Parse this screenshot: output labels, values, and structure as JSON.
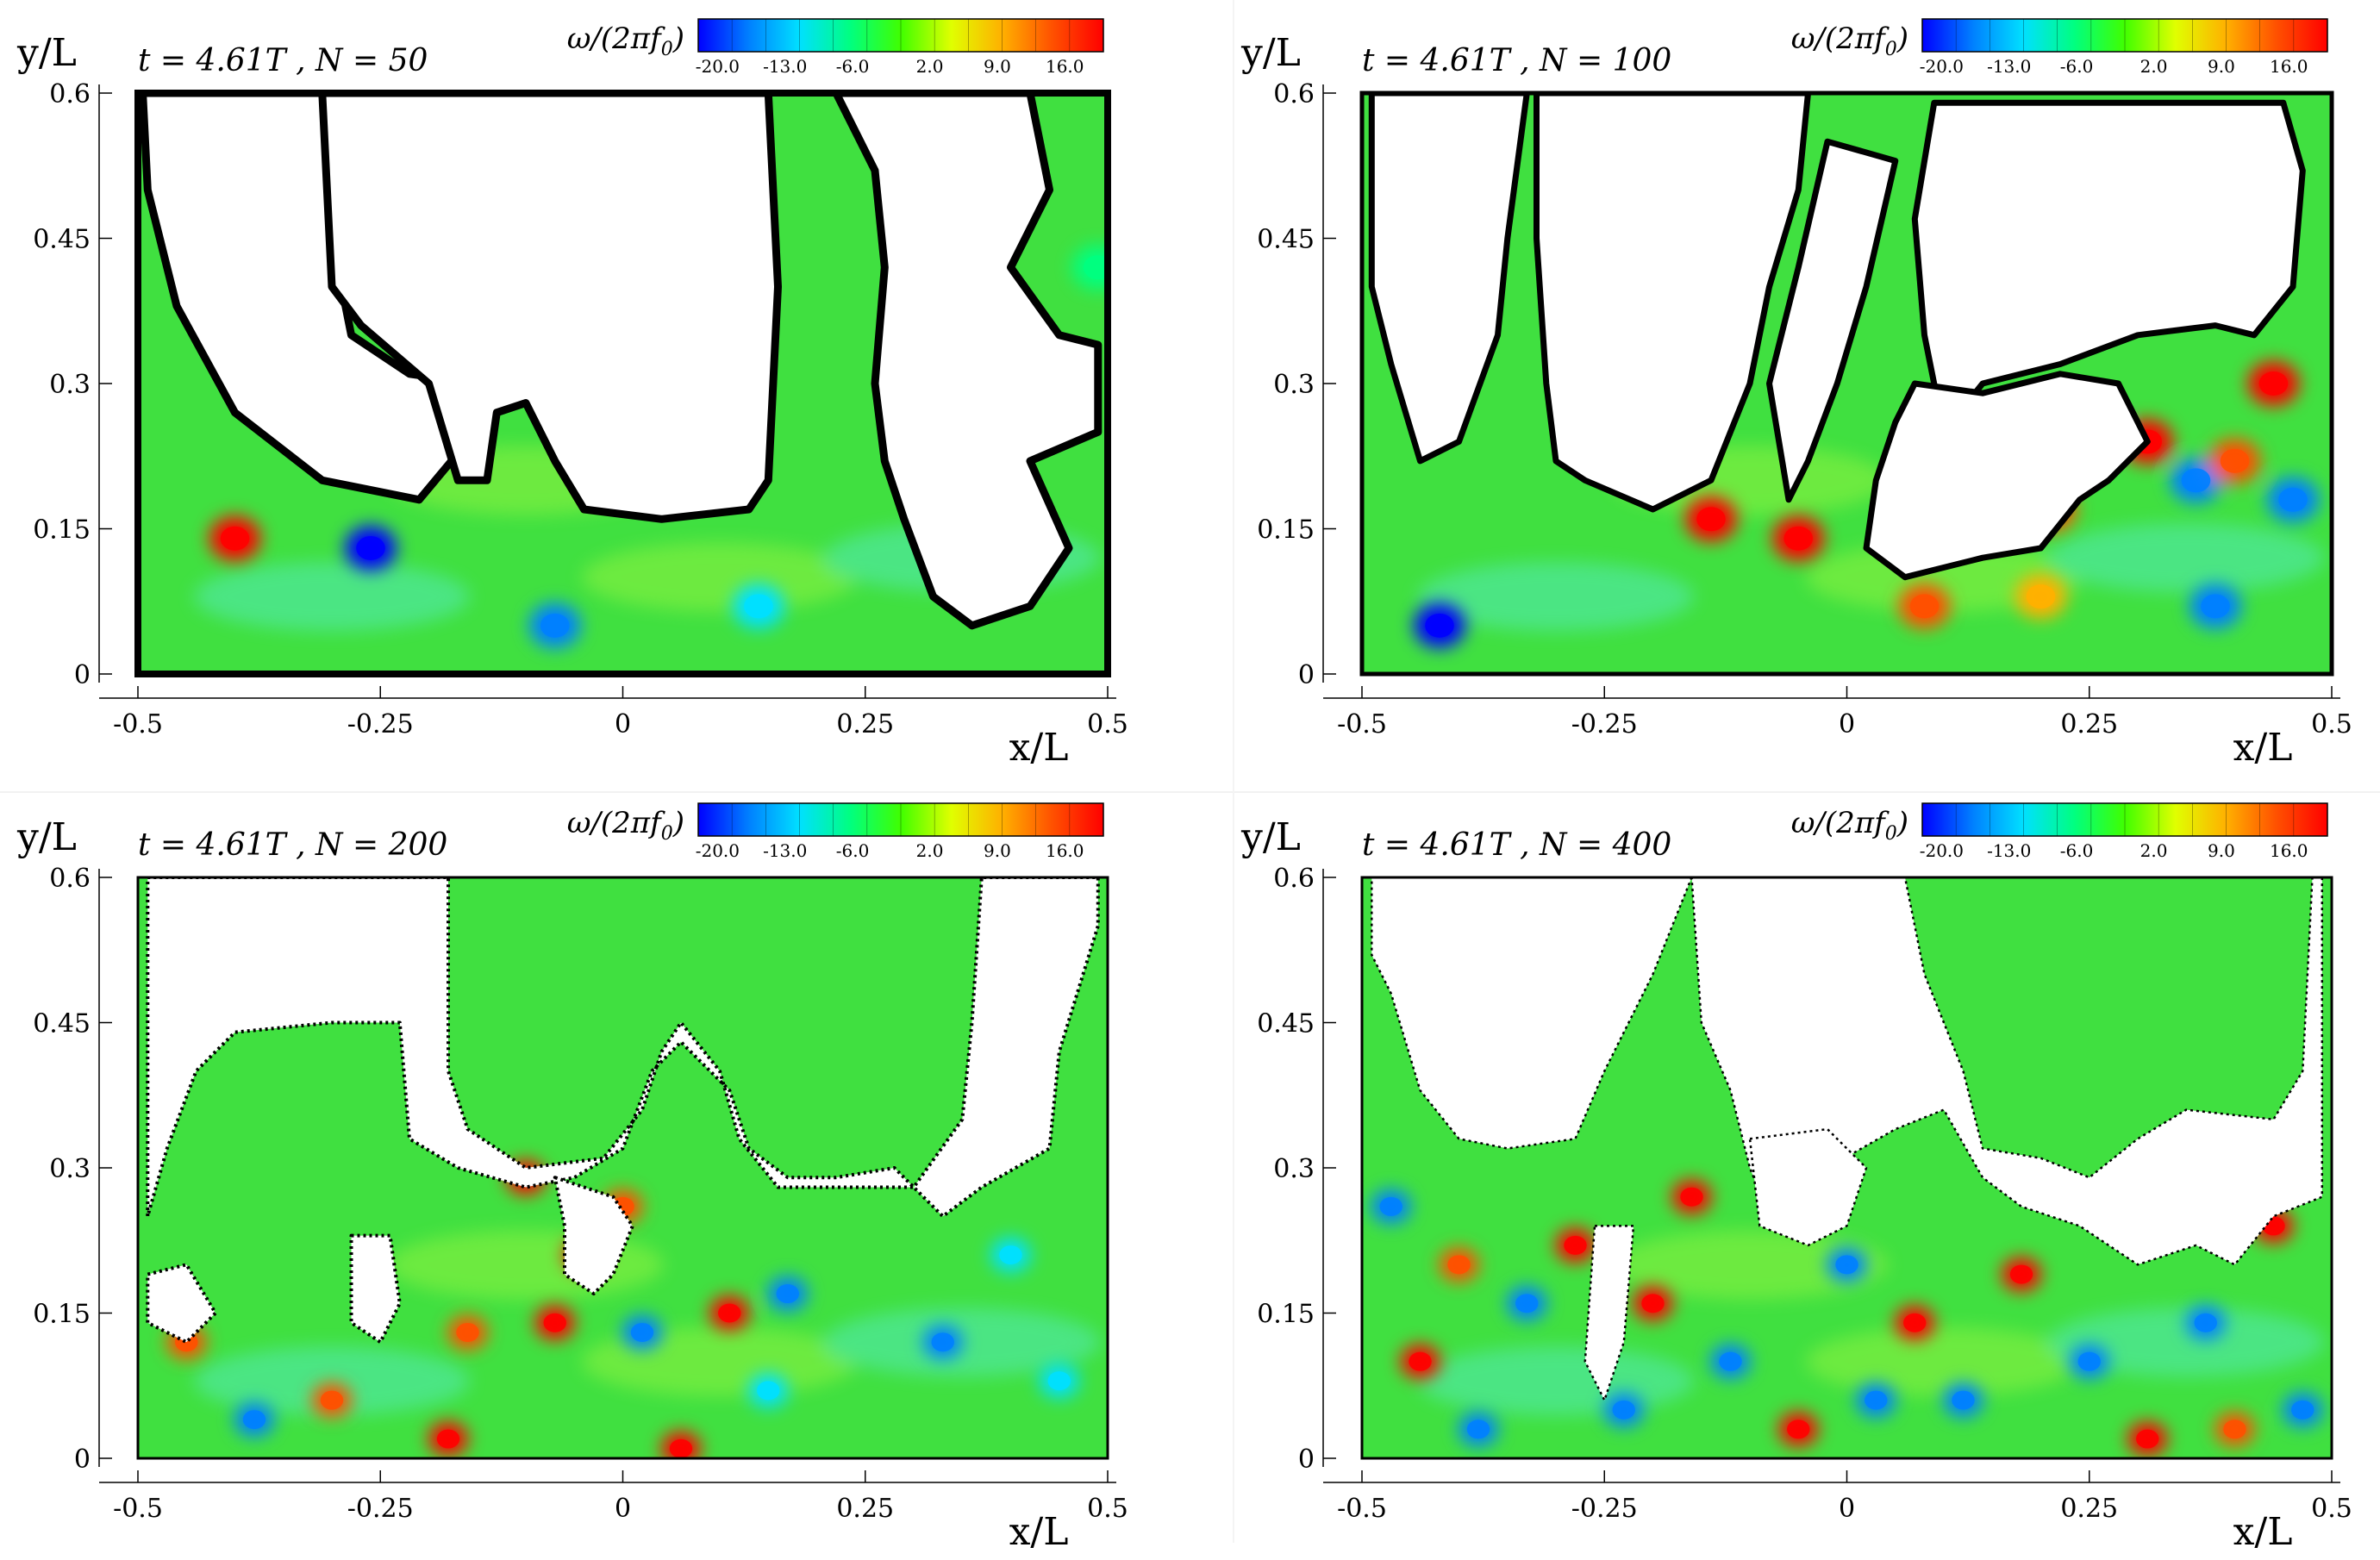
{
  "colorbar": {
    "label": "ω/(2πf",
    "label_sub": "0",
    "label_close": ")",
    "ticks": [
      "-20.0",
      "-13.0",
      "-6.0",
      "2.0",
      "9.0",
      "16.0"
    ],
    "range": [
      -22,
      20
    ],
    "colors": [
      "#0000ff",
      "#0080ff",
      "#00e0ff",
      "#00ff80",
      "#40ff00",
      "#e0ff00",
      "#ffb000",
      "#ff5000",
      "#ff0000"
    ]
  },
  "axes": {
    "xlabel": "x/L",
    "ylabel": "y/L",
    "xticks": [
      "-0.5",
      "-0.25",
      "0",
      "0.25",
      "0.5"
    ],
    "xtick_values": [
      -0.5,
      -0.25,
      0,
      0.25,
      0.5
    ],
    "yticks": [
      "0",
      "0.15",
      "0.3",
      "0.45",
      "0.6"
    ],
    "ytick_values": [
      0,
      0.15,
      0.3,
      0.45,
      0.6
    ],
    "xlim": [
      -0.5,
      0.5
    ],
    "ylim": [
      0,
      0.6
    ]
  },
  "chart_data": [
    {
      "type": "heatmap",
      "title_t": "t = 4.61T",
      "title_n": "N = 50",
      "xlabel": "x/L",
      "ylabel": "y/L",
      "xlim": [
        -0.5,
        0.5
      ],
      "ylim": [
        0,
        0.6
      ],
      "colorbar_label": "ω/(2πf0)",
      "vortices": [
        {
          "x": -0.4,
          "y": 0.14,
          "v": 18
        },
        {
          "x": -0.26,
          "y": 0.13,
          "v": -20
        },
        {
          "x": -0.07,
          "y": 0.05,
          "v": -15
        },
        {
          "x": 0.14,
          "y": 0.07,
          "v": -10
        },
        {
          "x": 0.49,
          "y": 0.42,
          "v": -8
        }
      ],
      "void_regions": [
        [
          [
            -0.495,
            0.6
          ],
          [
            -0.3,
            0.6
          ],
          [
            -0.29,
            0.4
          ],
          [
            -0.28,
            0.35
          ],
          [
            -0.22,
            0.31
          ],
          [
            -0.15,
            0.3
          ],
          [
            -0.16,
            0.24
          ],
          [
            -0.21,
            0.18
          ],
          [
            -0.31,
            0.2
          ],
          [
            -0.4,
            0.27
          ],
          [
            -0.46,
            0.38
          ],
          [
            -0.49,
            0.5
          ]
        ],
        [
          [
            -0.31,
            0.6
          ],
          [
            0.15,
            0.6
          ],
          [
            0.16,
            0.4
          ],
          [
            0.15,
            0.2
          ],
          [
            0.13,
            0.17
          ],
          [
            0.04,
            0.16
          ],
          [
            -0.04,
            0.17
          ],
          [
            -0.07,
            0.22
          ],
          [
            -0.1,
            0.28
          ],
          [
            -0.13,
            0.27
          ],
          [
            -0.14,
            0.2
          ],
          [
            -0.17,
            0.2
          ],
          [
            -0.2,
            0.3
          ],
          [
            -0.27,
            0.36
          ],
          [
            -0.3,
            0.4
          ]
        ],
        [
          [
            0.22,
            0.6
          ],
          [
            0.42,
            0.6
          ],
          [
            0.44,
            0.5
          ],
          [
            0.4,
            0.42
          ],
          [
            0.45,
            0.35
          ],
          [
            0.49,
            0.34
          ],
          [
            0.49,
            0.25
          ],
          [
            0.42,
            0.22
          ],
          [
            0.46,
            0.13
          ],
          [
            0.42,
            0.07
          ],
          [
            0.36,
            0.05
          ],
          [
            0.32,
            0.08
          ],
          [
            0.29,
            0.16
          ],
          [
            0.27,
            0.22
          ],
          [
            0.26,
            0.3
          ],
          [
            0.27,
            0.42
          ],
          [
            0.26,
            0.52
          ]
        ]
      ]
    },
    {
      "type": "heatmap",
      "title_t": "t = 4.61T",
      "title_n": "N = 100",
      "xlabel": "x/L",
      "ylabel": "y/L",
      "xlim": [
        -0.5,
        0.5
      ],
      "ylim": [
        0,
        0.6
      ],
      "colorbar_label": "ω/(2πf0)",
      "vortices": [
        {
          "x": -0.42,
          "y": 0.05,
          "v": -20
        },
        {
          "x": 0.08,
          "y": 0.07,
          "v": 14
        },
        {
          "x": 0.2,
          "y": 0.08,
          "v": 10
        },
        {
          "x": 0.26,
          "y": 0.25,
          "v": -20
        },
        {
          "x": 0.31,
          "y": 0.24,
          "v": 18
        },
        {
          "x": 0.36,
          "y": 0.2,
          "v": -18
        },
        {
          "x": 0.4,
          "y": 0.22,
          "v": 16
        },
        {
          "x": 0.38,
          "y": 0.07,
          "v": -18
        },
        {
          "x": 0.46,
          "y": 0.18,
          "v": -16
        },
        {
          "x": 0.21,
          "y": 0.17,
          "v": 16
        },
        {
          "x": -0.05,
          "y": 0.14,
          "v": 18
        },
        {
          "x": -0.14,
          "y": 0.16,
          "v": 18
        },
        {
          "x": 0.44,
          "y": 0.3,
          "v": 18
        }
      ],
      "void_regions": [
        [
          [
            -0.49,
            0.6
          ],
          [
            -0.33,
            0.6
          ],
          [
            -0.35,
            0.45
          ],
          [
            -0.36,
            0.35
          ],
          [
            -0.4,
            0.24
          ],
          [
            -0.44,
            0.22
          ],
          [
            -0.47,
            0.32
          ],
          [
            -0.49,
            0.4
          ]
        ],
        [
          [
            -0.32,
            0.6
          ],
          [
            -0.04,
            0.6
          ],
          [
            -0.05,
            0.5
          ],
          [
            -0.08,
            0.4
          ],
          [
            -0.1,
            0.3
          ],
          [
            -0.14,
            0.2
          ],
          [
            -0.2,
            0.17
          ],
          [
            -0.27,
            0.2
          ],
          [
            -0.3,
            0.22
          ],
          [
            -0.31,
            0.3
          ],
          [
            -0.32,
            0.45
          ]
        ],
        [
          [
            -0.02,
            0.55
          ],
          [
            0.05,
            0.53
          ],
          [
            0.02,
            0.4
          ],
          [
            -0.01,
            0.3
          ],
          [
            -0.04,
            0.22
          ],
          [
            -0.06,
            0.18
          ],
          [
            -0.08,
            0.3
          ],
          [
            -0.05,
            0.42
          ]
        ],
        [
          [
            0.09,
            0.59
          ],
          [
            0.45,
            0.59
          ],
          [
            0.47,
            0.52
          ],
          [
            0.46,
            0.4
          ],
          [
            0.42,
            0.35
          ],
          [
            0.38,
            0.36
          ],
          [
            0.3,
            0.35
          ],
          [
            0.22,
            0.32
          ],
          [
            0.14,
            0.3
          ],
          [
            0.1,
            0.25
          ],
          [
            0.08,
            0.35
          ],
          [
            0.07,
            0.47
          ]
        ],
        [
          [
            0.07,
            0.3
          ],
          [
            0.14,
            0.29
          ],
          [
            0.22,
            0.31
          ],
          [
            0.28,
            0.3
          ],
          [
            0.31,
            0.24
          ],
          [
            0.27,
            0.2
          ],
          [
            0.24,
            0.18
          ],
          [
            0.2,
            0.13
          ],
          [
            0.14,
            0.12
          ],
          [
            0.06,
            0.1
          ],
          [
            0.02,
            0.13
          ],
          [
            0.03,
            0.2
          ],
          [
            0.05,
            0.26
          ]
        ]
      ]
    },
    {
      "type": "heatmap",
      "title_t": "t = 4.61T",
      "title_n": "N = 200",
      "xlabel": "x/L",
      "ylabel": "y/L",
      "xlim": [
        -0.5,
        0.5
      ],
      "ylim": [
        0,
        0.6
      ],
      "colorbar_label": "ω/(2πf0)",
      "vortices": [
        {
          "x": -0.38,
          "y": 0.04,
          "v": -18
        },
        {
          "x": -0.18,
          "y": 0.02,
          "v": 18
        },
        {
          "x": -0.16,
          "y": 0.13,
          "v": 16
        },
        {
          "x": -0.1,
          "y": 0.29,
          "v": 18
        },
        {
          "x": -0.07,
          "y": 0.14,
          "v": 18
        },
        {
          "x": -0.04,
          "y": 0.21,
          "v": 18
        },
        {
          "x": 0.0,
          "y": 0.26,
          "v": 16
        },
        {
          "x": 0.02,
          "y": 0.13,
          "v": -18
        },
        {
          "x": 0.06,
          "y": 0.01,
          "v": 18
        },
        {
          "x": 0.11,
          "y": 0.15,
          "v": 18
        },
        {
          "x": 0.17,
          "y": 0.17,
          "v": -18
        },
        {
          "x": 0.15,
          "y": 0.07,
          "v": -14
        },
        {
          "x": 0.33,
          "y": 0.12,
          "v": -16
        },
        {
          "x": 0.4,
          "y": 0.21,
          "v": -12
        },
        {
          "x": 0.45,
          "y": 0.08,
          "v": -10
        },
        {
          "x": -0.45,
          "y": 0.12,
          "v": 16
        },
        {
          "x": -0.3,
          "y": 0.06,
          "v": 14
        }
      ],
      "void_regions": [
        [
          [
            -0.49,
            0.6
          ],
          [
            -0.18,
            0.6
          ],
          [
            -0.18,
            0.4
          ],
          [
            -0.16,
            0.34
          ],
          [
            -0.1,
            0.3
          ],
          [
            -0.02,
            0.31
          ],
          [
            0.02,
            0.36
          ],
          [
            0.04,
            0.42
          ],
          [
            0.06,
            0.45
          ],
          [
            0.1,
            0.4
          ],
          [
            0.12,
            0.33
          ],
          [
            0.16,
            0.28
          ],
          [
            0.22,
            0.28
          ],
          [
            0.3,
            0.28
          ],
          [
            0.35,
            0.35
          ],
          [
            0.36,
            0.45
          ],
          [
            0.37,
            0.6
          ],
          [
            0.49,
            0.6
          ],
          [
            0.49,
            0.55
          ],
          [
            0.45,
            0.42
          ],
          [
            0.44,
            0.32
          ],
          [
            0.37,
            0.28
          ],
          [
            0.33,
            0.25
          ],
          [
            0.3,
            0.28
          ],
          [
            0.28,
            0.3
          ],
          [
            0.22,
            0.29
          ],
          [
            0.17,
            0.29
          ],
          [
            0.13,
            0.32
          ],
          [
            0.11,
            0.38
          ],
          [
            0.06,
            0.43
          ],
          [
            0.03,
            0.4
          ],
          [
            0.0,
            0.32
          ],
          [
            -0.05,
            0.29
          ],
          [
            -0.1,
            0.28
          ],
          [
            -0.17,
            0.3
          ],
          [
            -0.22,
            0.33
          ],
          [
            -0.23,
            0.45
          ],
          [
            -0.3,
            0.45
          ],
          [
            -0.4,
            0.44
          ],
          [
            -0.44,
            0.4
          ],
          [
            -0.47,
            0.32
          ],
          [
            -0.49,
            0.25
          ]
        ],
        [
          [
            -0.07,
            0.29
          ],
          [
            -0.01,
            0.27
          ],
          [
            0.01,
            0.24
          ],
          [
            -0.01,
            0.19
          ],
          [
            -0.03,
            0.17
          ],
          [
            -0.06,
            0.19
          ],
          [
            -0.06,
            0.24
          ]
        ],
        [
          [
            -0.28,
            0.23
          ],
          [
            -0.24,
            0.23
          ],
          [
            -0.23,
            0.16
          ],
          [
            -0.25,
            0.12
          ],
          [
            -0.28,
            0.14
          ]
        ],
        [
          [
            -0.49,
            0.19
          ],
          [
            -0.45,
            0.2
          ],
          [
            -0.42,
            0.15
          ],
          [
            -0.45,
            0.12
          ],
          [
            -0.49,
            0.14
          ]
        ]
      ]
    },
    {
      "type": "heatmap",
      "title_t": "t = 4.61T",
      "title_n": "N = 400",
      "xlabel": "x/L",
      "ylabel": "y/L",
      "xlim": [
        -0.5,
        0.5
      ],
      "ylim": [
        0,
        0.6
      ],
      "colorbar_label": "ω/(2πf0)",
      "vortices": [
        {
          "x": -0.44,
          "y": 0.1,
          "v": 18
        },
        {
          "x": -0.38,
          "y": 0.03,
          "v": -18
        },
        {
          "x": -0.33,
          "y": 0.16,
          "v": -18
        },
        {
          "x": -0.28,
          "y": 0.22,
          "v": 18
        },
        {
          "x": -0.23,
          "y": 0.05,
          "v": -18
        },
        {
          "x": -0.16,
          "y": 0.27,
          "v": 18
        },
        {
          "x": -0.12,
          "y": 0.1,
          "v": -18
        },
        {
          "x": -0.05,
          "y": 0.03,
          "v": 18
        },
        {
          "x": 0.0,
          "y": 0.2,
          "v": -18
        },
        {
          "x": 0.07,
          "y": 0.14,
          "v": 18
        },
        {
          "x": 0.12,
          "y": 0.06,
          "v": -18
        },
        {
          "x": 0.18,
          "y": 0.19,
          "v": 18
        },
        {
          "x": 0.25,
          "y": 0.1,
          "v": -18
        },
        {
          "x": 0.31,
          "y": 0.02,
          "v": 18
        },
        {
          "x": 0.37,
          "y": 0.14,
          "v": -18
        },
        {
          "x": 0.44,
          "y": 0.24,
          "v": 18
        },
        {
          "x": 0.47,
          "y": 0.05,
          "v": -18
        },
        {
          "x": -0.47,
          "y": 0.26,
          "v": -18
        },
        {
          "x": -0.2,
          "y": 0.16,
          "v": 18
        },
        {
          "x": 0.03,
          "y": 0.06,
          "v": -16
        },
        {
          "x": -0.4,
          "y": 0.2,
          "v": 16
        },
        {
          "x": 0.4,
          "y": 0.03,
          "v": 16
        }
      ],
      "void_regions": [
        [
          [
            -0.49,
            0.6
          ],
          [
            -0.16,
            0.6
          ],
          [
            -0.2,
            0.5
          ],
          [
            -0.25,
            0.4
          ],
          [
            -0.28,
            0.33
          ],
          [
            -0.35,
            0.32
          ],
          [
            -0.4,
            0.33
          ],
          [
            -0.44,
            0.38
          ],
          [
            -0.47,
            0.48
          ],
          [
            -0.49,
            0.52
          ]
        ],
        [
          [
            -0.16,
            0.6
          ],
          [
            0.06,
            0.6
          ],
          [
            0.08,
            0.5
          ],
          [
            0.12,
            0.4
          ],
          [
            0.14,
            0.32
          ],
          [
            0.2,
            0.31
          ],
          [
            0.25,
            0.29
          ],
          [
            0.3,
            0.33
          ],
          [
            0.35,
            0.36
          ],
          [
            0.44,
            0.35
          ],
          [
            0.47,
            0.4
          ],
          [
            0.48,
            0.6
          ],
          [
            0.49,
            0.6
          ],
          [
            0.49,
            0.27
          ],
          [
            0.44,
            0.25
          ],
          [
            0.4,
            0.2
          ],
          [
            0.36,
            0.22
          ],
          [
            0.3,
            0.2
          ],
          [
            0.24,
            0.24
          ],
          [
            0.18,
            0.26
          ],
          [
            0.14,
            0.29
          ],
          [
            0.1,
            0.36
          ],
          [
            0.05,
            0.34
          ],
          [
            -0.02,
            0.3
          ],
          [
            -0.08,
            0.25
          ],
          [
            -0.1,
            0.3
          ],
          [
            -0.12,
            0.38
          ],
          [
            -0.15,
            0.45
          ]
        ],
        [
          [
            -0.26,
            0.24
          ],
          [
            -0.22,
            0.24
          ],
          [
            -0.23,
            0.12
          ],
          [
            -0.25,
            0.06
          ],
          [
            -0.27,
            0.1
          ]
        ],
        [
          [
            -0.1,
            0.33
          ],
          [
            -0.02,
            0.34
          ],
          [
            0.02,
            0.3
          ],
          [
            0.0,
            0.24
          ],
          [
            -0.04,
            0.22
          ],
          [
            -0.09,
            0.24
          ]
        ]
      ]
    }
  ]
}
